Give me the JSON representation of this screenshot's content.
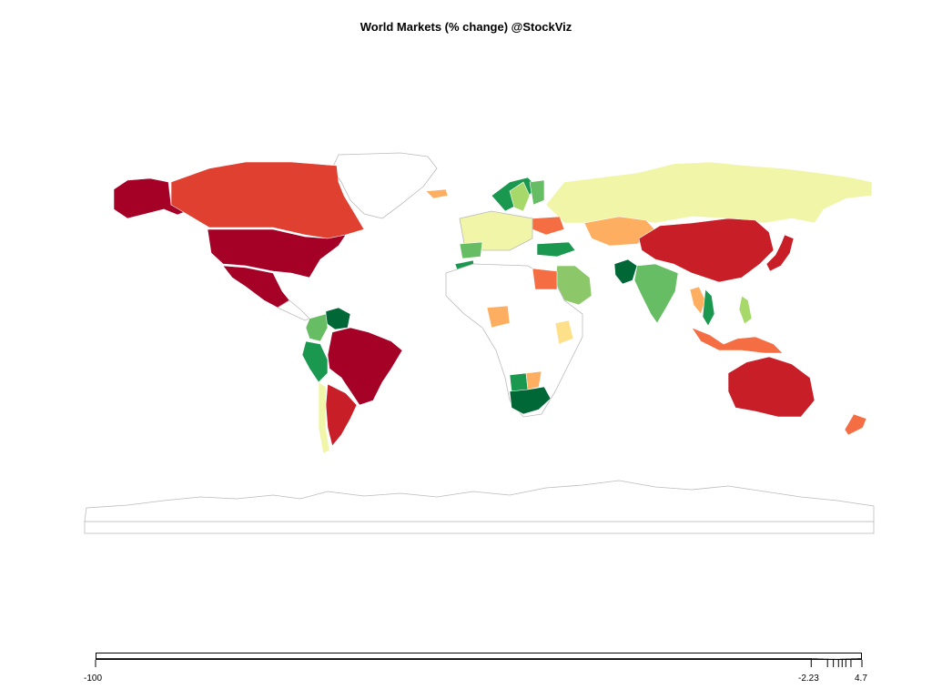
{
  "title": "World Markets (% change) @StockViz",
  "legend": {
    "min_label": "-100",
    "mid_label": "-2.23",
    "max_label": "4.7",
    "min_value": -100,
    "mid_value": -2.23,
    "max_value": 4.7,
    "colors": [
      "#a50026",
      "#d7301f",
      "#f46d43",
      "#fdae61",
      "#fee08b",
      "#f0f5a8",
      "#a6d96a",
      "#66bd63",
      "#1a9850",
      "#006837"
    ]
  },
  "regions": [
    {
      "name": "Alaska",
      "color": "#a50026"
    },
    {
      "name": "Canada",
      "color": "#e04030"
    },
    {
      "name": "United States",
      "color": "#a50026"
    },
    {
      "name": "Mexico",
      "color": "#a50026"
    },
    {
      "name": "Brazil",
      "color": "#a50026"
    },
    {
      "name": "Argentina",
      "color": "#c81e27"
    },
    {
      "name": "Colombia",
      "color": "#66bd63"
    },
    {
      "name": "Venezuela",
      "color": "#006837"
    },
    {
      "name": "Peru",
      "color": "#1a9850"
    },
    {
      "name": "Chile",
      "color": "#f0f5a8"
    },
    {
      "name": "Russia",
      "color": "#f0f5a8"
    },
    {
      "name": "China",
      "color": "#c81e27"
    },
    {
      "name": "Japan",
      "color": "#c81e27"
    },
    {
      "name": "India",
      "color": "#66bd63"
    },
    {
      "name": "Pakistan",
      "color": "#006837"
    },
    {
      "name": "Kazakhstan",
      "color": "#fdae61"
    },
    {
      "name": "Saudi Arabia",
      "color": "#8cc86a"
    },
    {
      "name": "Egypt",
      "color": "#f46d43"
    },
    {
      "name": "Nigeria",
      "color": "#fdae61"
    },
    {
      "name": "Kenya",
      "color": "#fee08b"
    },
    {
      "name": "South Africa",
      "color": "#006837"
    },
    {
      "name": "Botswana",
      "color": "#1a9850"
    },
    {
      "name": "Zimbabwe",
      "color": "#fdae61"
    },
    {
      "name": "Australia",
      "color": "#c81e27"
    },
    {
      "name": "New Zealand",
      "color": "#f46d43"
    },
    {
      "name": "Indonesia",
      "color": "#f46d43"
    },
    {
      "name": "Norway",
      "color": "#1a9850"
    },
    {
      "name": "Sweden",
      "color": "#a6d96a"
    },
    {
      "name": "Finland",
      "color": "#66bd63"
    },
    {
      "name": "Iceland",
      "color": "#fdae61"
    },
    {
      "name": "Turkey",
      "color": "#1a9850"
    },
    {
      "name": "Spain",
      "color": "#66bd63"
    },
    {
      "name": "Morocco",
      "color": "#1a9850"
    },
    {
      "name": "Vietnam",
      "color": "#fdae61"
    },
    {
      "name": "Philippines",
      "color": "#a6d96a"
    },
    {
      "name": "Thailand",
      "color": "#66bd63"
    },
    {
      "name": "Ukraine",
      "color": "#f46d43"
    }
  ]
}
